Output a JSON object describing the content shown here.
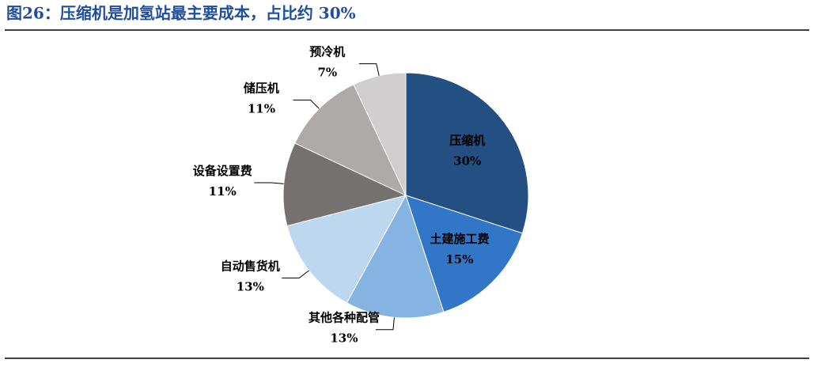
{
  "chart_data": {
    "type": "pie",
    "title": "图26：压缩机是加氢站最主要成本，占比约 30%",
    "categories": [
      "压缩机",
      "土建施工费",
      "其他各种配管",
      "自动售货机",
      "设备设置费",
      "储压机",
      "预冷机"
    ],
    "values": [
      30,
      15,
      13,
      13,
      11,
      11,
      7
    ],
    "value_labels": [
      "30%",
      "15%",
      "13%",
      "13%",
      "11%",
      "11%",
      "7%"
    ],
    "colors": [
      "#234f82",
      "#3276c8",
      "#86b4e2",
      "#bdd7ee",
      "#767171",
      "#aeaaaa",
      "#d0cece"
    ]
  }
}
